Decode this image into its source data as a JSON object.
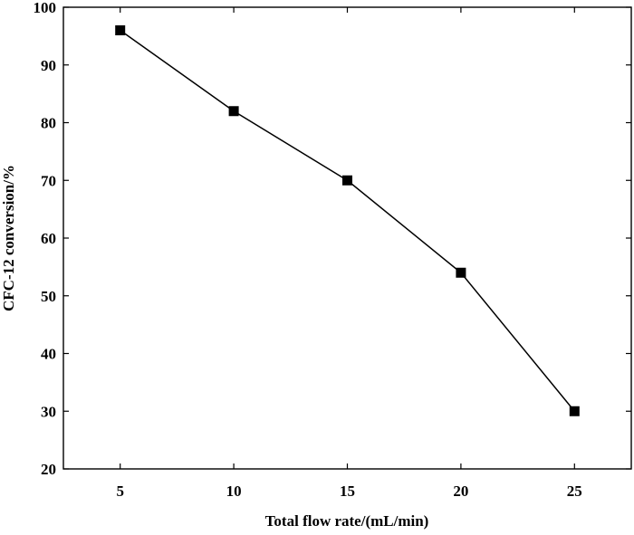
{
  "chart_data": {
    "type": "line",
    "title": "",
    "xlabel": "Total flow rate/(mL/min)",
    "ylabel": "CFC-12  conversion/%",
    "xlim": [
      2.5,
      27.5
    ],
    "ylim": [
      20,
      100
    ],
    "x_ticks": [
      5,
      10,
      15,
      20,
      25
    ],
    "y_ticks": [
      20,
      30,
      40,
      50,
      60,
      70,
      80,
      90,
      100
    ],
    "grid": false,
    "legend": "none",
    "marker": "square",
    "colors": {
      "line": "#000000",
      "marker": "#000000",
      "axes": "#000000"
    },
    "series": [
      {
        "x": [
          5,
          10,
          15,
          20,
          25
        ],
        "values": [
          96,
          82,
          70,
          54,
          30
        ]
      }
    ]
  }
}
